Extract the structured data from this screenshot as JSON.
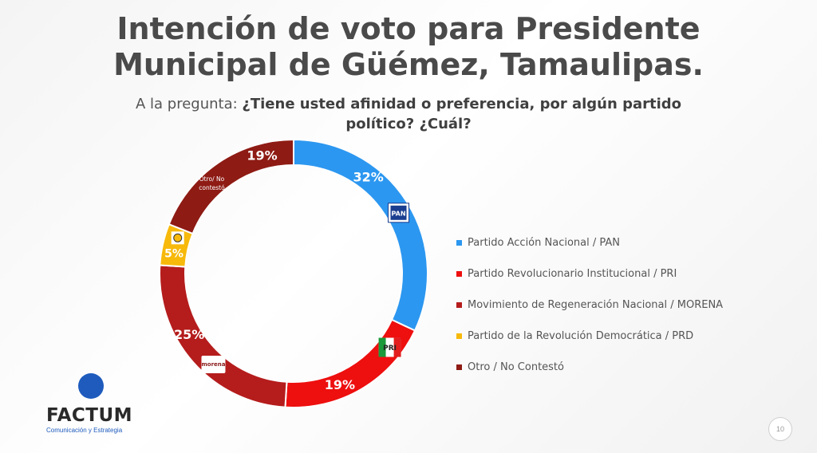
{
  "slide": {
    "title_line1": "Intención de voto para Presidente",
    "title_line2": "Municipal de Güémez, Tamaulipas.",
    "subtitle_prefix": "A la pregunta: ",
    "subtitle_question": "¿Tiene usted afinidad o preferencia, por algún partido político? ¿Cuál?",
    "page_number": "10"
  },
  "logo": {
    "name": "FACTUM",
    "tagline": "Comunicación y Estrategia",
    "color": "#1e5bbd"
  },
  "chart_data": {
    "type": "pie",
    "style": "donut",
    "start_angle_deg": 0,
    "direction": "clockwise",
    "slices": [
      {
        "legend": "Partido Acción Nacional / PAN",
        "value": 32,
        "label": "32%",
        "color": "#2c97f0",
        "emblem": "pan-logo-icon",
        "emblem_text": "PAN"
      },
      {
        "legend": "Partido Revolucionario Institucional  / PRI",
        "value": 19,
        "label": "19%",
        "color": "#ee0f0f",
        "emblem": "pri-logo-icon",
        "emblem_text": "PRI"
      },
      {
        "legend": "Movimiento de Regeneración Nacional  / MORENA",
        "value": 25,
        "label": "25%",
        "color": "#b51c1c",
        "emblem": "morena-logo-icon",
        "emblem_text": "morena"
      },
      {
        "legend": "Partido de la Revolución Democrática  / PRD",
        "value": 5,
        "label": "5%",
        "color": "#f7b90a",
        "emblem": "prd-logo-icon"
      },
      {
        "legend": "Otro / No Contestó",
        "value": 19,
        "label": "19%",
        "color": "#8e1b14",
        "inner_text_line1": "Otro/ No",
        "inner_text_line2": "contestó"
      }
    ],
    "legend_position": "right"
  }
}
